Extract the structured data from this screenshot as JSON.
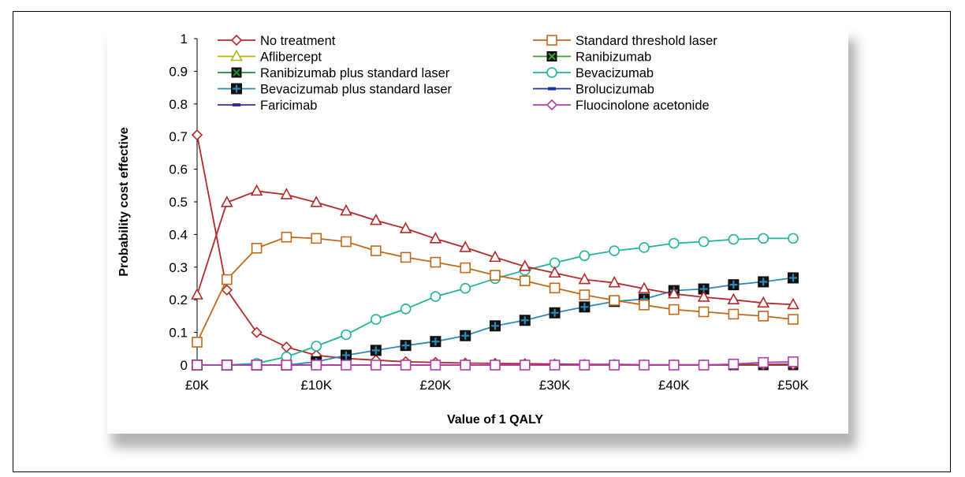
{
  "chart_data": {
    "type": "line",
    "title": "",
    "xlabel": "Value of 1 QALY",
    "ylabel": "Probability cost effective",
    "xlim": [
      0,
      50000
    ],
    "ylim": [
      0,
      1
    ],
    "x_tick_labels": [
      "£0K",
      "£10K",
      "£20K",
      "£30K",
      "£40K",
      "£50K"
    ],
    "y_tick_labels": [
      "0",
      "0.1",
      "0.2",
      "0.3",
      "0.4",
      "0.5",
      "0.6",
      "0.7",
      "0.8",
      "0.9",
      "1"
    ],
    "grid": false,
    "legend_position": "top",
    "x": [
      0,
      2500,
      5000,
      7500,
      10000,
      12500,
      15000,
      17500,
      20000,
      22500,
      25000,
      27500,
      30000,
      32500,
      35000,
      37500,
      40000,
      42500,
      45000,
      47500,
      50000
    ],
    "series": [
      {
        "name": "No treatment",
        "color": "#b22a2a",
        "marker": "diamond",
        "values": [
          0.705,
          0.23,
          0.1,
          0.055,
          0.03,
          0.02,
          0.015,
          0.01,
          0.008,
          0.006,
          0.005,
          0.004,
          0.003,
          0.002,
          0.002,
          0.001,
          0.001,
          0.001,
          0.001,
          0.001,
          0.001
        ]
      },
      {
        "name": "Standard threshold laser",
        "color": "#c06a1a",
        "marker": "square",
        "values": [
          0.07,
          0.262,
          0.358,
          0.392,
          0.388,
          0.378,
          0.35,
          0.33,
          0.315,
          0.298,
          0.275,
          0.258,
          0.236,
          0.215,
          0.198,
          0.184,
          0.17,
          0.163,
          0.156,
          0.15,
          0.14
        ]
      },
      {
        "name": "Aflibercept",
        "color": "#b22a2a",
        "legend_color": "#b5b514",
        "marker": "triangle",
        "values": [
          0.215,
          0.498,
          0.533,
          0.522,
          0.498,
          0.472,
          0.443,
          0.418,
          0.387,
          0.36,
          0.33,
          0.302,
          0.282,
          0.262,
          0.252,
          0.234,
          0.218,
          0.208,
          0.2,
          0.19,
          0.185
        ]
      },
      {
        "name": "Ranibizumab",
        "color": "#3aa12b",
        "marker": "square-x",
        "values": [
          0,
          0,
          0,
          0,
          0,
          0,
          0,
          0,
          0,
          0,
          0,
          0,
          0,
          0,
          0,
          0,
          0,
          0,
          0,
          0,
          0
        ]
      },
      {
        "name": "Ranibizumab plus standard laser",
        "color": "#1e8c2a",
        "marker": "square-x",
        "values": [
          0,
          0,
          0,
          0,
          0,
          0,
          0,
          0,
          0,
          0,
          0,
          0,
          0,
          0,
          0,
          0,
          0,
          0,
          0,
          0,
          0
        ]
      },
      {
        "name": "Bevacizumab",
        "color": "#22b39a",
        "marker": "circle",
        "values": [
          0,
          0,
          0.005,
          0.025,
          0.058,
          0.093,
          0.14,
          0.172,
          0.21,
          0.235,
          0.265,
          0.29,
          0.313,
          0.335,
          0.35,
          0.36,
          0.373,
          0.378,
          0.385,
          0.388,
          0.388
        ]
      },
      {
        "name": "Bevacizumab plus standard laser",
        "color": "#2e8ab5",
        "marker": "square-plus",
        "values": [
          0,
          0,
          0,
          0,
          0.01,
          0.03,
          0.045,
          0.06,
          0.072,
          0.09,
          0.12,
          0.137,
          0.16,
          0.178,
          0.195,
          0.202,
          0.228,
          0.233,
          0.246,
          0.255,
          0.267
        ]
      },
      {
        "name": "Brolucizumab",
        "color": "#1f2f9c",
        "marker": "dash",
        "values": [
          0,
          0,
          0,
          0,
          0,
          0,
          0,
          0,
          0,
          0,
          0,
          0,
          0,
          0,
          0,
          0,
          0,
          0,
          0,
          0,
          0
        ]
      },
      {
        "name": "Faricimab",
        "color": "#3d2a9a",
        "marker": "dash",
        "values": [
          0,
          0,
          0,
          0,
          0,
          0,
          0,
          0,
          0,
          0,
          0,
          0,
          0,
          0,
          0,
          0,
          0,
          0,
          0,
          0,
          0
        ]
      },
      {
        "name": "Fluocinolone acetonide",
        "color": "#b23ea8",
        "marker": "diamond",
        "values": [
          0,
          0,
          0,
          0,
          0,
          0,
          0,
          0,
          0,
          0,
          0,
          0,
          0,
          0,
          0,
          0,
          0,
          0,
          0,
          0.002,
          0.003
        ]
      }
    ]
  },
  "overlay_series": {
    "name": "Standard threshold laser",
    "color": "#b23ea8",
    "marker": "square",
    "values": [
      0,
      0,
      0,
      0,
      0,
      0,
      0,
      0,
      0,
      0,
      0,
      0,
      0,
      0,
      0,
      0,
      0,
      0,
      0.003,
      0.008,
      0.01
    ]
  },
  "legend": {
    "left": [
      "No treatment",
      "Aflibercept",
      "Ranibizumab plus standard laser",
      "Bevacizumab plus standard laser",
      "Faricimab"
    ],
    "right": [
      "Standard threshold laser",
      "Ranibizumab",
      "Bevacizumab",
      "Brolucizumab",
      "Fluocinolone acetonide"
    ]
  }
}
